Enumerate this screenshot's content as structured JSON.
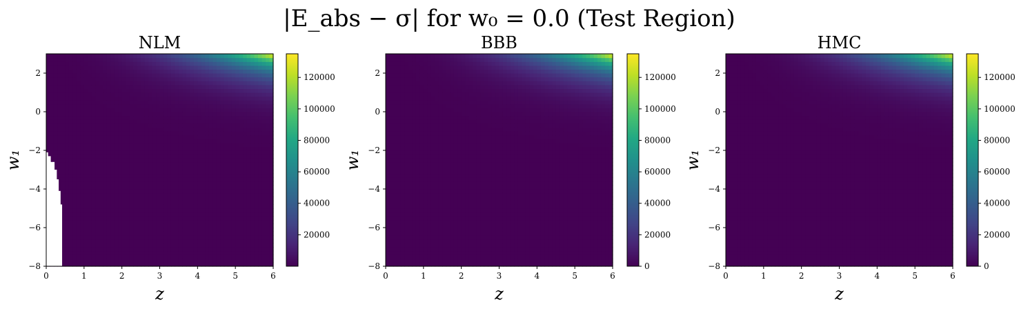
{
  "figure": {
    "title": "|E_abs − σ| for w₀ = 0.0 (Test Region)"
  },
  "chart_data": [
    {
      "type": "heatmap",
      "title": "NLM",
      "xlabel": "z",
      "ylabel": "w₁",
      "xlim": [
        0,
        6
      ],
      "ylim": [
        -8,
        3
      ],
      "x_ticks": [
        "0",
        "1",
        "2",
        "3",
        "4",
        "5",
        "6"
      ],
      "y_ticks": [
        "−8",
        "−6",
        "−4",
        "−2",
        "0",
        "2"
      ],
      "colormap": "viridis",
      "colorbar": {
        "min": 0,
        "max": 135000,
        "ticks": [
          "20000",
          "40000",
          "60000",
          "80000",
          "100000",
          "120000"
        ]
      },
      "z_max": 135000,
      "grid": false,
      "missing_region": [
        {
          "z_max": 0.05,
          "w1_min": -8,
          "w1_max": -2.1
        },
        {
          "z_max": 0.12,
          "w1_min": -8,
          "w1_max": -2.3
        },
        {
          "z_max": 0.22,
          "w1_min": -8,
          "w1_max": -2.6
        },
        {
          "z_max": 0.28,
          "w1_min": -8,
          "w1_max": -3.0
        },
        {
          "z_max": 0.33,
          "w1_min": -8,
          "w1_max": -3.5
        },
        {
          "z_max": 0.38,
          "w1_min": -8,
          "w1_max": -4.1
        },
        {
          "z_max": 0.42,
          "w1_min": -8,
          "w1_max": -4.8
        }
      ]
    },
    {
      "type": "heatmap",
      "title": "BBB",
      "xlabel": "z",
      "ylabel": "w₁",
      "xlim": [
        0,
        6
      ],
      "ylim": [
        -8,
        3
      ],
      "x_ticks": [
        "0",
        "1",
        "2",
        "3",
        "4",
        "5",
        "6"
      ],
      "y_ticks": [
        "−8",
        "−6",
        "−4",
        "−2",
        "0",
        "2"
      ],
      "colormap": "viridis",
      "colorbar": {
        "min": 0,
        "max": 135000,
        "ticks": [
          "0",
          "20000",
          "40000",
          "60000",
          "80000",
          "100000",
          "120000"
        ]
      },
      "z_max": 135000,
      "grid": false
    },
    {
      "type": "heatmap",
      "title": "HMC",
      "xlabel": "z",
      "ylabel": "w₁",
      "xlim": [
        0,
        6
      ],
      "ylim": [
        -8,
        3
      ],
      "x_ticks": [
        "0",
        "1",
        "2",
        "3",
        "4",
        "5",
        "6"
      ],
      "y_ticks": [
        "−8",
        "−6",
        "−4",
        "−2",
        "0",
        "2"
      ],
      "colormap": "viridis",
      "colorbar": {
        "min": 0,
        "max": 135000,
        "ticks": [
          "0",
          "20000",
          "40000",
          "60000",
          "80000",
          "100000",
          "120000"
        ]
      },
      "z_max": 135000,
      "grid": false
    }
  ]
}
